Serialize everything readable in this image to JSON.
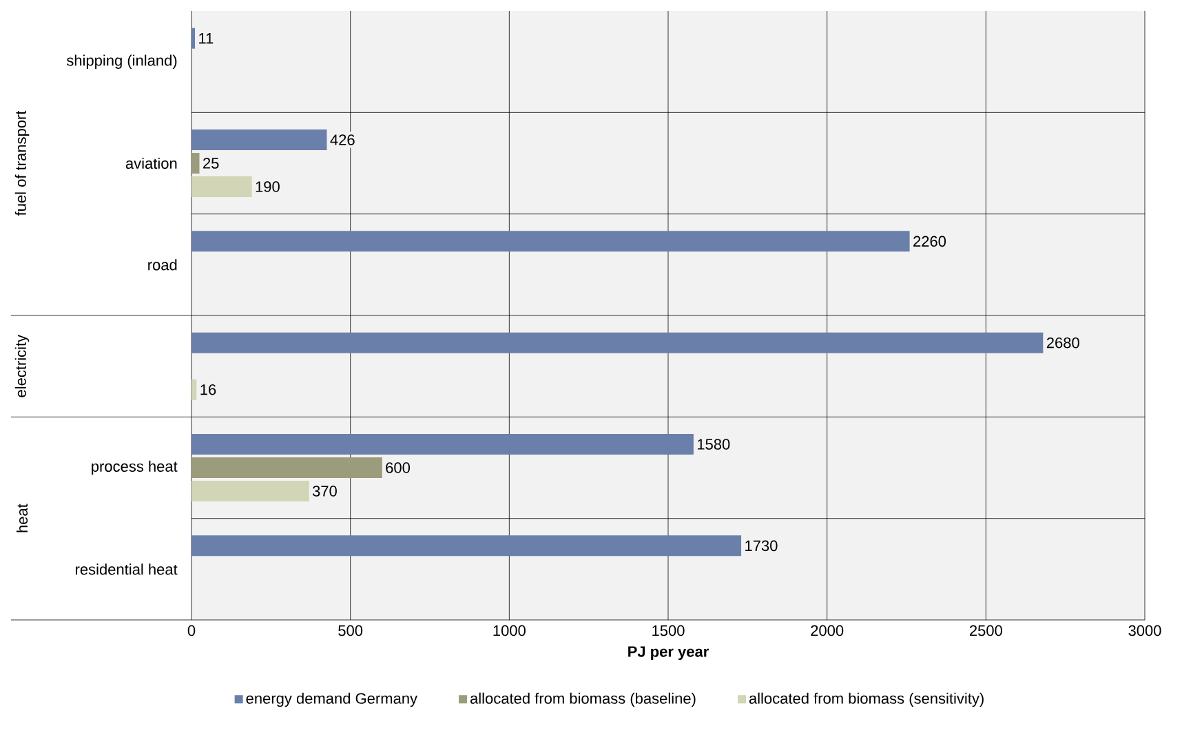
{
  "chart_data": {
    "type": "bar",
    "orientation": "horizontal",
    "xlabel": "PJ per year",
    "categories": [
      "shipping (inland)",
      "aviation",
      "road",
      null,
      "process heat",
      "residential heat"
    ],
    "series": [
      {
        "name": "energy demand Germany",
        "color": "#6a80aa",
        "values": [
          11,
          426,
          2260,
          2680,
          1580,
          1730
        ]
      },
      {
        "name": "allocated from biomass (baseline)",
        "color": "#9a9c7c",
        "values": [
          null,
          25,
          null,
          null,
          600,
          null
        ]
      },
      {
        "name": "allocated from biomass (sensitivity)",
        "color": "#d2d5b6",
        "values": [
          null,
          190,
          null,
          16,
          370,
          null
        ]
      }
    ],
    "annotations": [
      "fuel of transport",
      "electricity",
      "heat"
    ],
    "xlim": [
      0,
      3000
    ],
    "xticks": [
      0,
      500,
      1000,
      1500,
      2000,
      2500,
      3000
    ],
    "grid": "x",
    "legend": "bottom",
    "data_labels": true
  }
}
